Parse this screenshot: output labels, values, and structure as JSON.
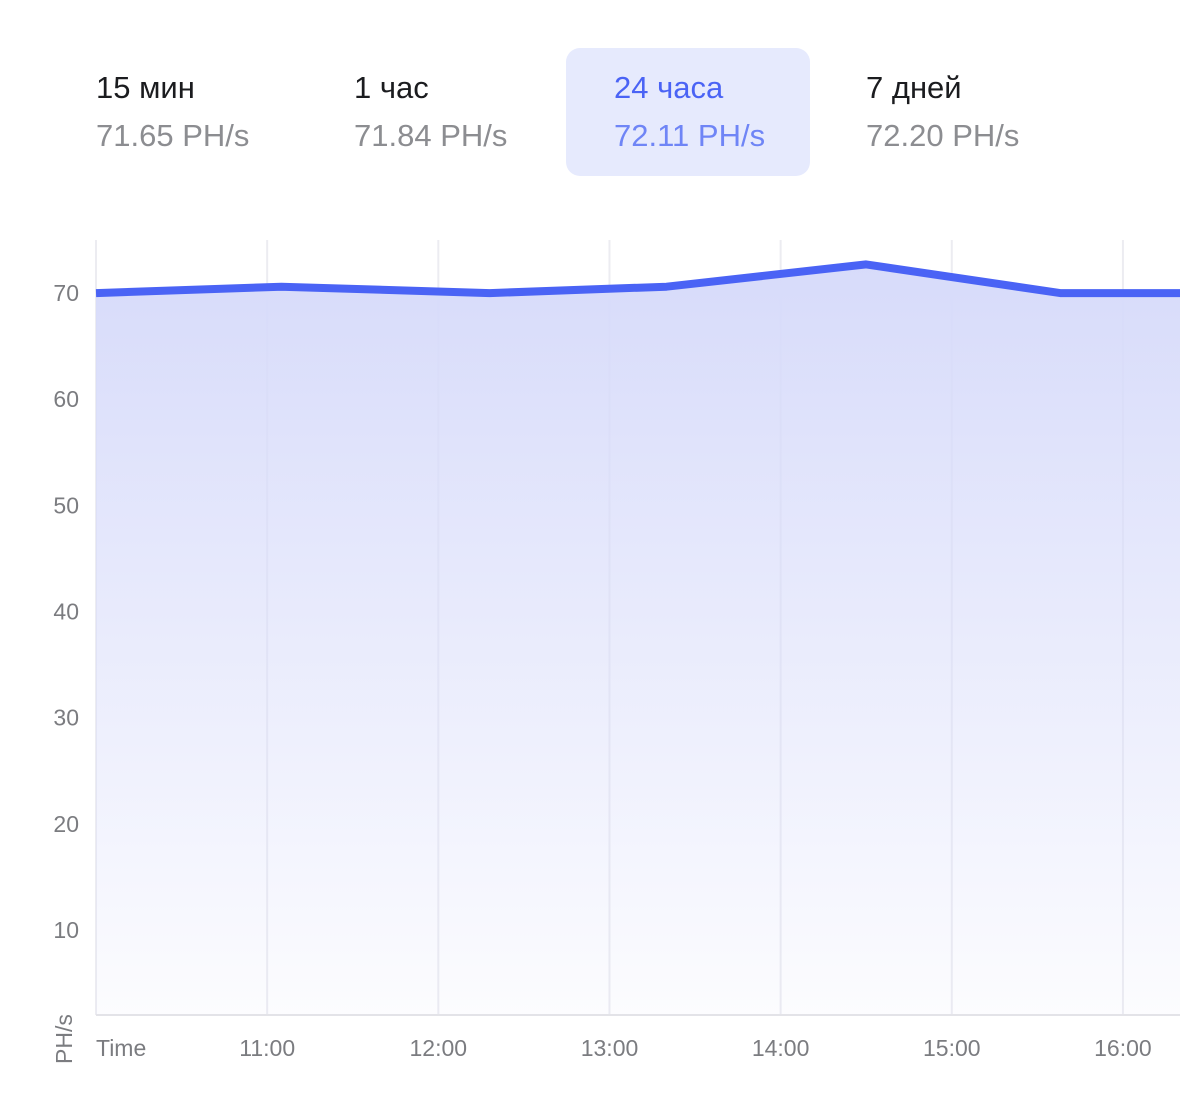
{
  "tabs": [
    {
      "label": "15 мин",
      "value": "71.65 PH/s",
      "active": false
    },
    {
      "label": "1 час",
      "value": "71.84 PH/s",
      "active": false
    },
    {
      "label": "24 часа",
      "value": "72.11 PH/s",
      "active": true
    },
    {
      "label": "7 дней",
      "value": "72.20 PH/s",
      "active": false
    }
  ],
  "colors": {
    "line": "#4a63f5",
    "fill_top": "#d7dbfa",
    "active_tab_bg": "#e6eafd",
    "active_tab_text": "#4a63f5",
    "grid": "#ececf1",
    "tick_text": "#7b7c80"
  },
  "chart_data": {
    "type": "area",
    "xlabel": "Time",
    "ylabel": "PH/s",
    "ylim": [
      2,
      75
    ],
    "yticks": [
      10,
      20,
      30,
      40,
      50,
      60,
      70
    ],
    "xlim": [
      "10:00",
      "16:20"
    ],
    "xticks": [
      "11:00",
      "12:00",
      "13:00",
      "14:00",
      "15:00",
      "16:00"
    ],
    "grid": "vertical",
    "series": [
      {
        "x": [
          "10:00",
          "11:05",
          "12:18",
          "13:20",
          "14:30",
          "15:38",
          "16:20"
        ],
        "y": [
          70.0,
          70.6,
          70.0,
          70.6,
          72.7,
          70.0,
          70.0
        ]
      }
    ]
  }
}
